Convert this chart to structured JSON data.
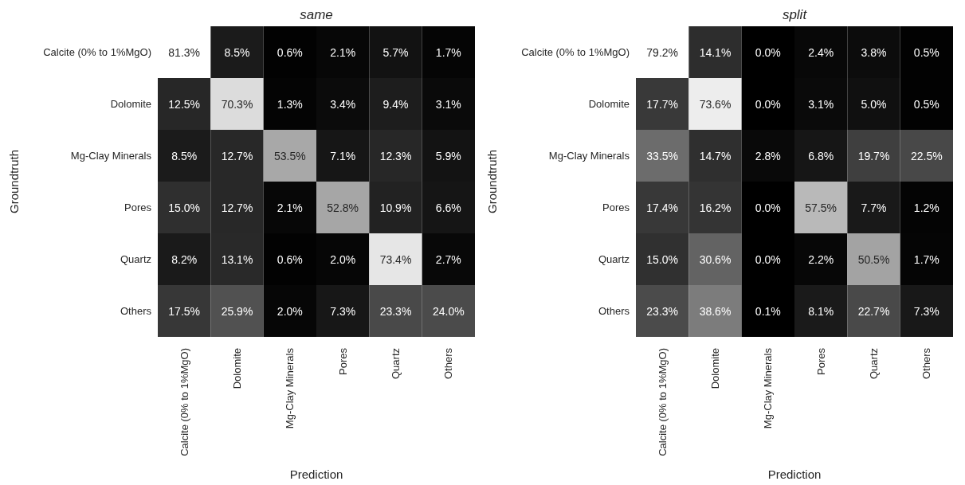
{
  "chart_data": [
    {
      "type": "heatmap",
      "title": "same",
      "xlabel": "Prediction",
      "ylabel": "Groundtruth",
      "categories": [
        "Calcite (0% to 1%MgO)",
        "Dolomite",
        "Mg-Clay Minerals",
        "Pores",
        "Quartz",
        "Others"
      ],
      "y_categories": [
        "Calcite (0% to 1%MgO)",
        "Dolomite",
        "Mg-Clay Minerals",
        "Pores",
        "Quartz",
        "Others"
      ],
      "cells": [
        [
          81.3,
          8.5,
          0.6,
          2.1,
          5.7,
          1.7
        ],
        [
          12.5,
          70.3,
          1.3,
          3.4,
          9.4,
          3.1
        ],
        [
          8.5,
          12.7,
          53.5,
          7.1,
          12.3,
          5.9
        ],
        [
          15.0,
          12.7,
          2.1,
          52.8,
          10.9,
          6.6
        ],
        [
          8.2,
          13.1,
          0.6,
          2.0,
          73.4,
          2.7
        ],
        [
          17.5,
          25.9,
          2.0,
          7.3,
          23.3,
          24.0
        ]
      ],
      "cell_labels": [
        [
          "81.3%",
          "8.5%",
          "0.6%",
          "2.1%",
          "5.7%",
          "1.7%"
        ],
        [
          "12.5%",
          "70.3%",
          "1.3%",
          "3.4%",
          "9.4%",
          "3.1%"
        ],
        [
          "8.5%",
          "12.7%",
          "53.5%",
          "7.1%",
          "12.3%",
          "5.9%"
        ],
        [
          "15.0%",
          "12.7%",
          "2.1%",
          "52.8%",
          "10.9%",
          "6.6%"
        ],
        [
          "8.2%",
          "13.1%",
          "0.6%",
          "2.0%",
          "73.4%",
          "2.7%"
        ],
        [
          "17.5%",
          "25.9%",
          "2.0%",
          "7.3%",
          "23.3%",
          "24.0%"
        ]
      ]
    },
    {
      "type": "heatmap",
      "title": "split",
      "xlabel": "Prediction",
      "ylabel": "Groundtruth",
      "categories": [
        "Calcite (0% to 1%MgO)",
        "Dolomite",
        "Mg-Clay Minerals",
        "Pores",
        "Quartz",
        "Others"
      ],
      "y_categories": [
        "Calcite (0% to 1%MgO)",
        "Dolomite",
        "Mg-Clay Minerals",
        "Pores",
        "Quartz",
        "Others"
      ],
      "cells": [
        [
          79.2,
          14.1,
          0.0,
          2.4,
          3.8,
          0.5
        ],
        [
          17.7,
          73.6,
          0.0,
          3.1,
          5.0,
          0.5
        ],
        [
          33.5,
          14.7,
          2.8,
          6.8,
          19.7,
          22.5
        ],
        [
          17.4,
          16.2,
          0.0,
          57.5,
          7.7,
          1.2
        ],
        [
          15.0,
          30.6,
          0.0,
          2.2,
          50.5,
          1.7
        ],
        [
          23.3,
          38.6,
          0.1,
          8.1,
          22.7,
          7.3
        ]
      ],
      "cell_labels": [
        [
          "79.2%",
          "14.1%",
          "0.0%",
          "2.4%",
          "3.8%",
          "0.5%"
        ],
        [
          "17.7%",
          "73.6%",
          "0.0%",
          "3.1%",
          "5.0%",
          "0.5%"
        ],
        [
          "33.5%",
          "14.7%",
          "2.8%",
          "6.8%",
          "19.7%",
          "22.5%"
        ],
        [
          "17.4%",
          "16.2%",
          "0.0%",
          "57.5%",
          "7.7%",
          "1.2%"
        ],
        [
          "15.0%",
          "30.6%",
          "0.0%",
          "2.2%",
          "50.5%",
          "1.7%"
        ],
        [
          "23.3%",
          "38.6%",
          "0.1%",
          "8.1%",
          "22.7%",
          "7.3%"
        ]
      ]
    }
  ]
}
